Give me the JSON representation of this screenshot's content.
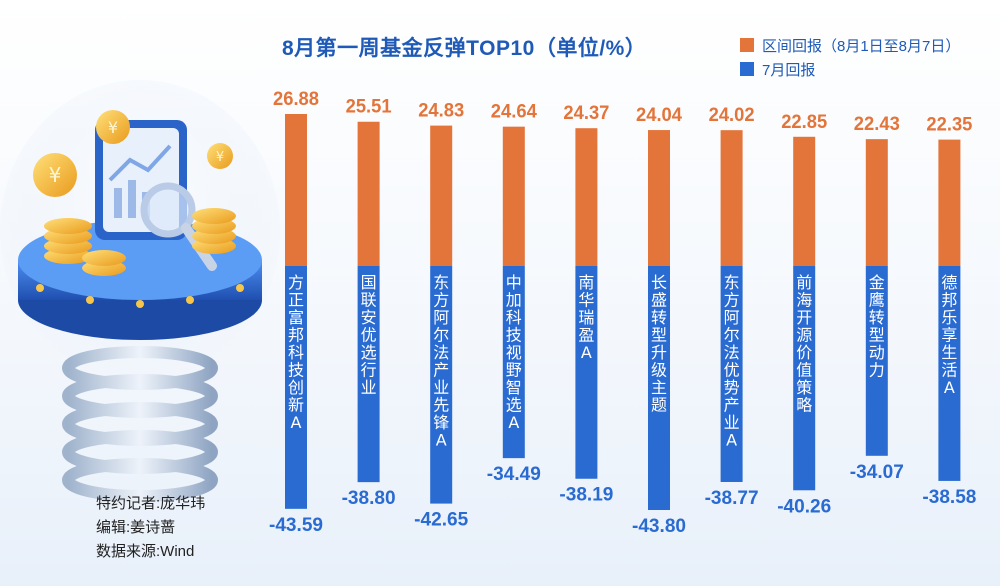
{
  "title": "8月第一周基金反弹TOP10（单位/%）",
  "legend": {
    "interval_label": "区间回报（8月1日至8月7日）",
    "july_label": "7月回报"
  },
  "credits": {
    "reporter": "特约记者:庞华玮",
    "editor": "编辑:姜诗蔷",
    "source": "数据来源:Wind"
  },
  "colors": {
    "orange": "#e3743a",
    "blue": "#2a6bd1",
    "label_text": "#333333"
  },
  "chart_data": {
    "type": "bar",
    "title": "8月第一周基金反弹TOP10（单位/%）",
    "categories": [
      "方正富邦科技创新A",
      "国联安优选行业",
      "东方阿尔法产业先锋A",
      "中加科技视野智选A",
      "南华瑞盈A",
      "长盛转型升级主题",
      "东方阿尔法优势产业A",
      "前海开源价值策略",
      "金鹰转型动力",
      "德邦乐享生活A"
    ],
    "series": [
      {
        "name": "区间回报（8月1日至8月7日）",
        "values": [
          26.88,
          25.51,
          24.83,
          24.64,
          24.37,
          24.04,
          24.02,
          22.85,
          22.43,
          22.35
        ]
      },
      {
        "name": "7月回报",
        "values": [
          -43.59,
          -38.8,
          -42.65,
          -34.49,
          -38.19,
          -43.8,
          -38.77,
          -40.26,
          -34.07,
          -38.58
        ]
      }
    ],
    "value_labels_pos": [
      "26.88",
      "25.51",
      "24.83",
      "24.64",
      "24.37",
      "24.04",
      "24.02",
      "22.85",
      "22.43",
      "22.35"
    ],
    "value_labels_neg": [
      "-43.59",
      "-38.80",
      "-42.65",
      "-34.49",
      "-38.19",
      "-43.80",
      "-38.77",
      "-40.26",
      "-34.07",
      "-38.58"
    ],
    "legend_position": "top-right",
    "grid": false
  }
}
